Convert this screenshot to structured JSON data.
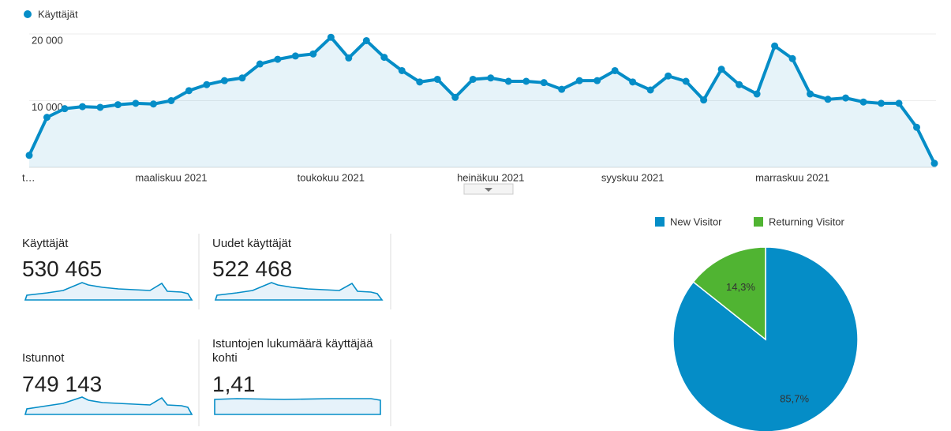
{
  "chart_data": [
    {
      "type": "line",
      "categories": [
        "t…",
        null,
        null,
        null,
        null,
        null,
        null,
        null,
        "maaliskuu 2021",
        null,
        null,
        null,
        null,
        null,
        null,
        null,
        null,
        "toukokuu 2021",
        null,
        null,
        null,
        null,
        null,
        null,
        null,
        null,
        "heinäkuu 2021",
        null,
        null,
        null,
        null,
        null,
        null,
        null,
        "syyskuu 2021",
        null,
        null,
        null,
        null,
        null,
        null,
        null,
        null,
        "marraskuu 2021",
        null,
        null,
        null,
        null,
        null,
        null,
        null,
        null
      ],
      "series": [
        {
          "name": "Käyttäjät",
          "color": "#058dc7",
          "values": [
            1800,
            7500,
            8800,
            9100,
            9000,
            9400,
            9600,
            9500,
            10000,
            11500,
            12400,
            13000,
            13400,
            15500,
            16200,
            16700,
            17000,
            19500,
            16400,
            19000,
            16500,
            14500,
            12800,
            13200,
            10500,
            13200,
            13400,
            12900,
            12900,
            12700,
            11700,
            13000,
            13000,
            14500,
            12800,
            11600,
            13700,
            12900,
            10100,
            14700,
            12400,
            11000,
            18200,
            16300,
            11000,
            10200,
            10400,
            9800,
            9600,
            9600,
            6000,
            600
          ]
        }
      ],
      "ylim": [
        0,
        20000
      ],
      "yticks": [
        {
          "value": 10000,
          "label": "10 000"
        },
        {
          "value": 20000,
          "label": "20 000"
        }
      ],
      "grid": true,
      "legend": "top-left"
    },
    {
      "type": "pie",
      "categories": [
        "New Visitor",
        "Returning Visitor"
      ],
      "values": [
        85.7,
        14.3
      ],
      "value_labels": [
        "85,7%",
        "14,3%"
      ],
      "colors": [
        "#058dc7",
        "#50b432"
      ],
      "legend": "top"
    }
  ],
  "metrics": [
    {
      "title": "Käyttäjät",
      "value": "530 465"
    },
    {
      "title": "Uudet käyttäjät",
      "value": "522 468"
    },
    {
      "title": "Istunnot",
      "value": "749 143"
    },
    {
      "title": "Istuntojen lukumäärä käyttäjää kohti",
      "value": "1,41"
    }
  ]
}
